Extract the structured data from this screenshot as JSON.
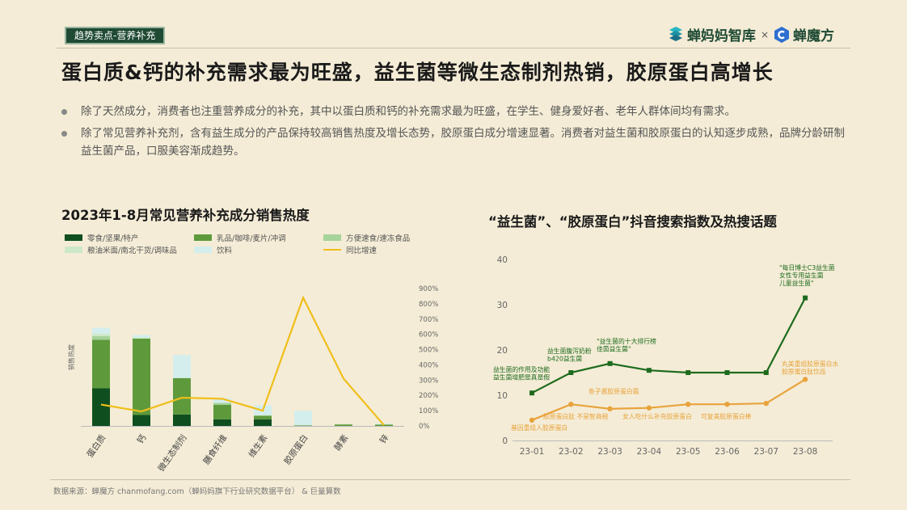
{
  "header": {
    "tag": "趋势卖点-营养补充",
    "headline": "蛋白质&钙的补充需求最为旺盛，益生菌等微生态制剂热销，胶原蛋白高增长",
    "logo_left": "蝉妈妈智库",
    "logo_sep": "×",
    "logo_right": "蝉魔方"
  },
  "bullets": [
    "除了天然成分，消费者也注重营养成分的补充，其中以蛋白质和钙的补充需求最为旺盛，在学生、健身爱好者、老年人群体间均有需求。",
    "除了常见营养补充剂，含有益生成分的产品保持较高销售热度及增长态势，胶原蛋白成分增速显著。消费者对益生菌和胶原蛋白的认知逐步成熟，品牌分龄研制益生菌产品，口服美容渐成趋势。"
  ],
  "footer": {
    "source": "数据来源：蝉魔方 chanmofang.com（蝉妈妈旗下行业研究数据平台） & 巨量算数"
  },
  "chart_data": [
    {
      "type": "bar",
      "title": "2023年1-8月常见营养补充成分销售热度",
      "ylabel": "销售热度",
      "stacked": true,
      "categories": [
        "蛋白质",
        "钙",
        "微生态制剂",
        "膳食纤维",
        "维生素",
        "胶原蛋白",
        "酵素",
        "锌"
      ],
      "series": [
        {
          "name": "零食/坚果/特产",
          "color": "#0f4f1f",
          "values": [
            31,
            9,
            9.5,
            5.5,
            5.5,
            0,
            0,
            0
          ]
        },
        {
          "name": "乳品/咖啡/麦片/冲调",
          "color": "#5e9a3c",
          "values": [
            40,
            63,
            30,
            12,
            3,
            0.5,
            1.2,
            1
          ]
        },
        {
          "name": "方便速食/速冻食品",
          "color": "#a6d39a",
          "values": [
            3,
            0,
            0,
            1.5,
            0,
            0,
            0.3,
            0.3
          ]
        },
        {
          "name": "粮油米面/南北干货/调味品",
          "color": "#cde8c8",
          "values": [
            2,
            1,
            0,
            0,
            0.5,
            0,
            0,
            0
          ]
        },
        {
          "name": "饮料",
          "color": "#d4eeee",
          "values": [
            5,
            2,
            19,
            4,
            8,
            12,
            0,
            0.5
          ]
        }
      ],
      "line_series": {
        "name": "同比增速",
        "color": "#f0be1a",
        "values": [
          140,
          95,
          185,
          178,
          100,
          840,
          310,
          5
        ],
        "axis": "right",
        "unit": "%"
      },
      "yright_ticks": [
        "0%",
        "100%",
        "200%",
        "300%",
        "400%",
        "500%",
        "600%",
        "700%",
        "800%",
        "900%"
      ],
      "yright_lim": [
        0,
        900
      ],
      "legend": "top",
      "grid": false
    },
    {
      "type": "line",
      "title": "“益生菌”、“胶原蛋白”抖音搜索指数及热搜话题",
      "x": [
        "23-01",
        "23-02",
        "23-03",
        "23-04",
        "23-05",
        "23-06",
        "23-07",
        "23-08"
      ],
      "ylim": [
        0,
        40
      ],
      "yticks": [
        0,
        10,
        20,
        30,
        40
      ],
      "grid": false,
      "series": [
        {
          "color": "#1e6b1e",
          "values": [
            10.5,
            15,
            17,
            15.5,
            15,
            15,
            15,
            31.5
          ]
        },
        {
          "color": "#e8a33c",
          "values": [
            4.5,
            8,
            7,
            7.2,
            8,
            8,
            8.2,
            13.5
          ]
        }
      ],
      "annotations": [
        {
          "text": "益生菌的作用及功能\n益生菌增肥是真是假",
          "color": "#1e6b1e"
        },
        {
          "text": "益生菌腹泻奶粉\nb420益生菌",
          "color": "#1e6b1e"
        },
        {
          "text": "\"益生菌的十大排行榜\n佳茵益生菌\"",
          "color": "#1e6b1e"
        },
        {
          "text": "\"每日博士C3益生菌\n女性专用益生菌\n儿童益生菌\"",
          "color": "#1e6b1e"
        },
        {
          "text": "基因重组人胶原蛋白",
          "color": "#e8a33c"
        },
        {
          "text": "胶原蛋白肽 不是智商税",
          "color": "#e8a33c"
        },
        {
          "text": "鱼子酱胶原蛋白霜",
          "color": "#e8a33c"
        },
        {
          "text": "女人吃什么补充胶原蛋白",
          "color": "#e8a33c"
        },
        {
          "text": "可复美胶原蛋白棒",
          "color": "#e8a33c"
        },
        {
          "text": "丸美重组胶原蛋白水\n胶原蛋白肽饮品",
          "color": "#e8a33c"
        }
      ]
    }
  ]
}
